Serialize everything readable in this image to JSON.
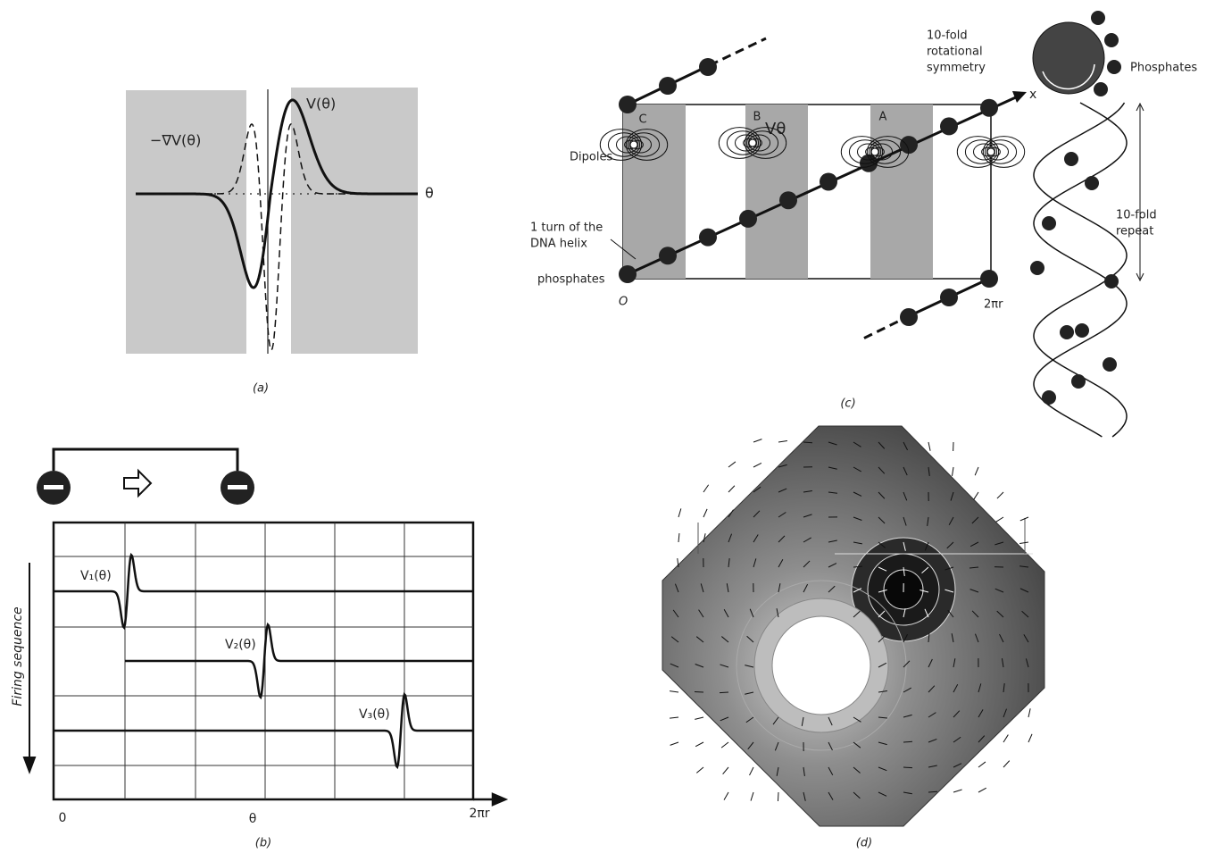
{
  "panel_a": {
    "curve_label": "V(θ)",
    "gradient_label": "−∇V(θ)",
    "axis_label": "θ",
    "caption": "(a)"
  },
  "panel_b": {
    "trace_labels": [
      "V₁(θ)",
      "V₂(θ)",
      "V₃(θ)"
    ],
    "y_axis_label": "Firing sequence",
    "x_start": "0",
    "x_mid": "θ",
    "x_end": "2πr",
    "caption": "(b)"
  },
  "panel_c": {
    "symmetry_label": [
      "10-fold",
      "rotational",
      "symmetry"
    ],
    "phosphates_label": "Phosphates",
    "axis_label": "x",
    "site_labels": [
      "C",
      "B",
      "A"
    ],
    "potential_label": "Vθ",
    "dipoles_label": "Dipoles",
    "turn_label": [
      "1 turn of the",
      "DNA helix"
    ],
    "phosphates_lower_label": "phosphates",
    "origin_label": "O",
    "end_label": "2πr",
    "repeat_label": [
      "10-fold",
      "repeat"
    ],
    "caption": "(c)"
  },
  "panel_d": {
    "caption": "(d)"
  }
}
